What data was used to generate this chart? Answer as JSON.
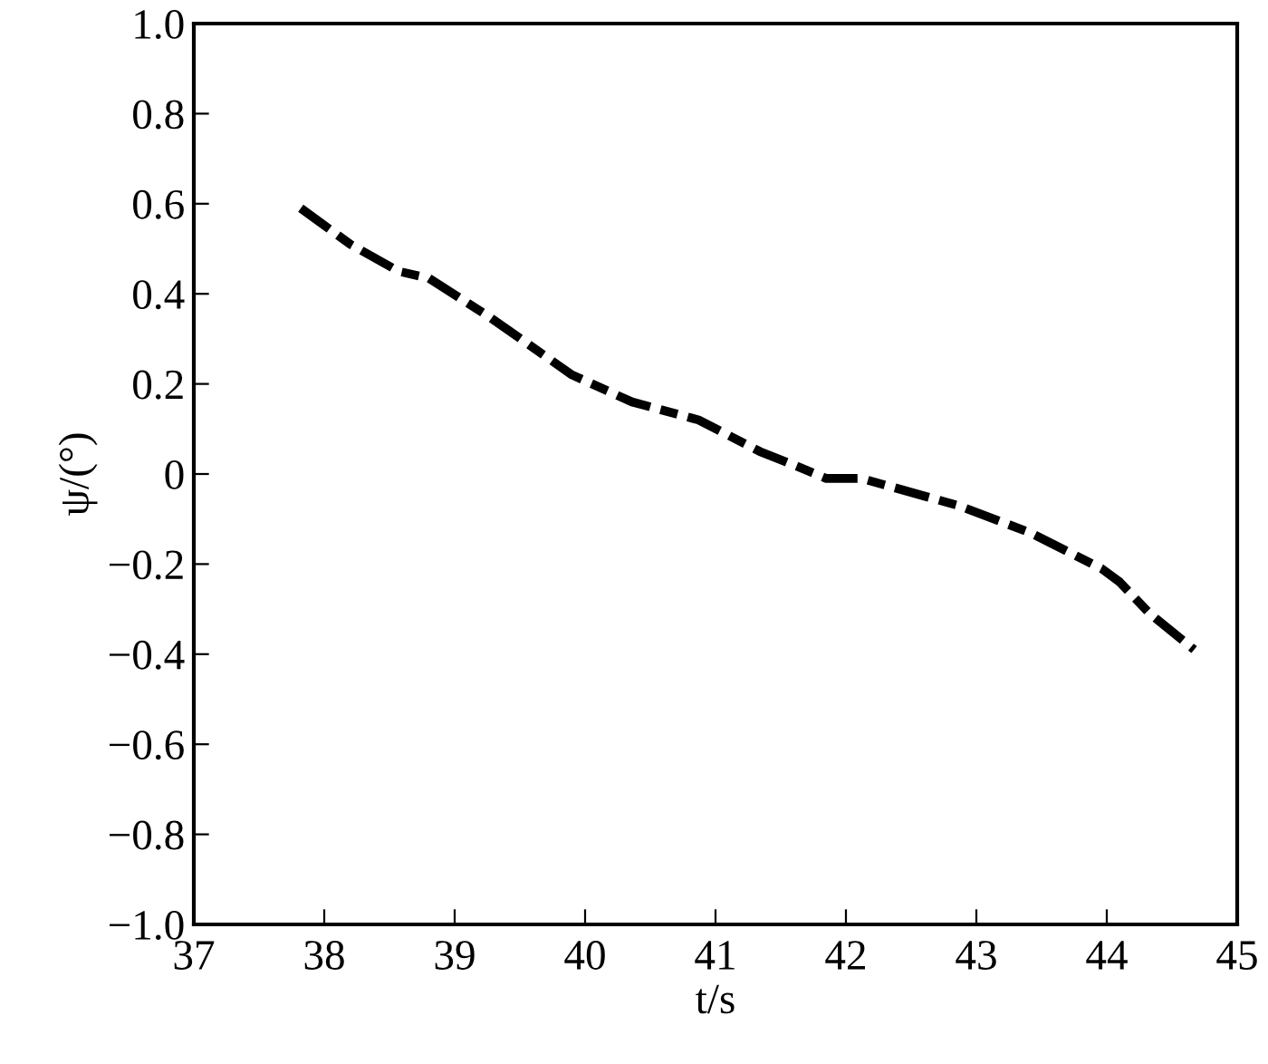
{
  "chart_data": {
    "type": "line",
    "xlabel": "t/s",
    "ylabel": "ψ/(°)",
    "x": [
      37.82,
      38.2,
      38.57,
      38.8,
      39.26,
      39.9,
      40.36,
      40.87,
      41.34,
      41.6,
      41.85,
      42.12,
      42.86,
      43.41,
      43.96,
      44.1,
      44.33,
      44.67
    ],
    "series": [
      {
        "color": "#000000",
        "values": [
          0.59,
          0.51,
          0.45,
          0.435,
          0.35,
          0.22,
          0.16,
          0.12,
          0.05,
          0.02,
          -0.01,
          -0.01,
          -0.07,
          -0.13,
          -0.21,
          -0.24,
          -0.31,
          -0.39
        ]
      }
    ],
    "xlim": [
      37,
      45
    ],
    "ylim": [
      -1.0,
      1.0
    ],
    "xticks": [
      37,
      38,
      39,
      40,
      41,
      42,
      43,
      44,
      45
    ],
    "yticks": [
      {
        "value": -1.0,
        "label": "−1.0"
      },
      {
        "value": -0.8,
        "label": "−0.8"
      },
      {
        "value": -0.6,
        "label": "−0.6"
      },
      {
        "value": -0.4,
        "label": "−0.4"
      },
      {
        "value": -0.2,
        "label": "−0.2"
      },
      0,
      {
        "value": 0.2,
        "label": "0.2"
      },
      {
        "value": 0.4,
        "label": "0.4"
      },
      {
        "value": 0.6,
        "label": "0.6"
      },
      {
        "value": 0.8,
        "label": "0.8"
      },
      {
        "value": 1.0,
        "label": "1.0"
      }
    ],
    "grid": false,
    "marker": "none",
    "line_style": "dashed"
  }
}
